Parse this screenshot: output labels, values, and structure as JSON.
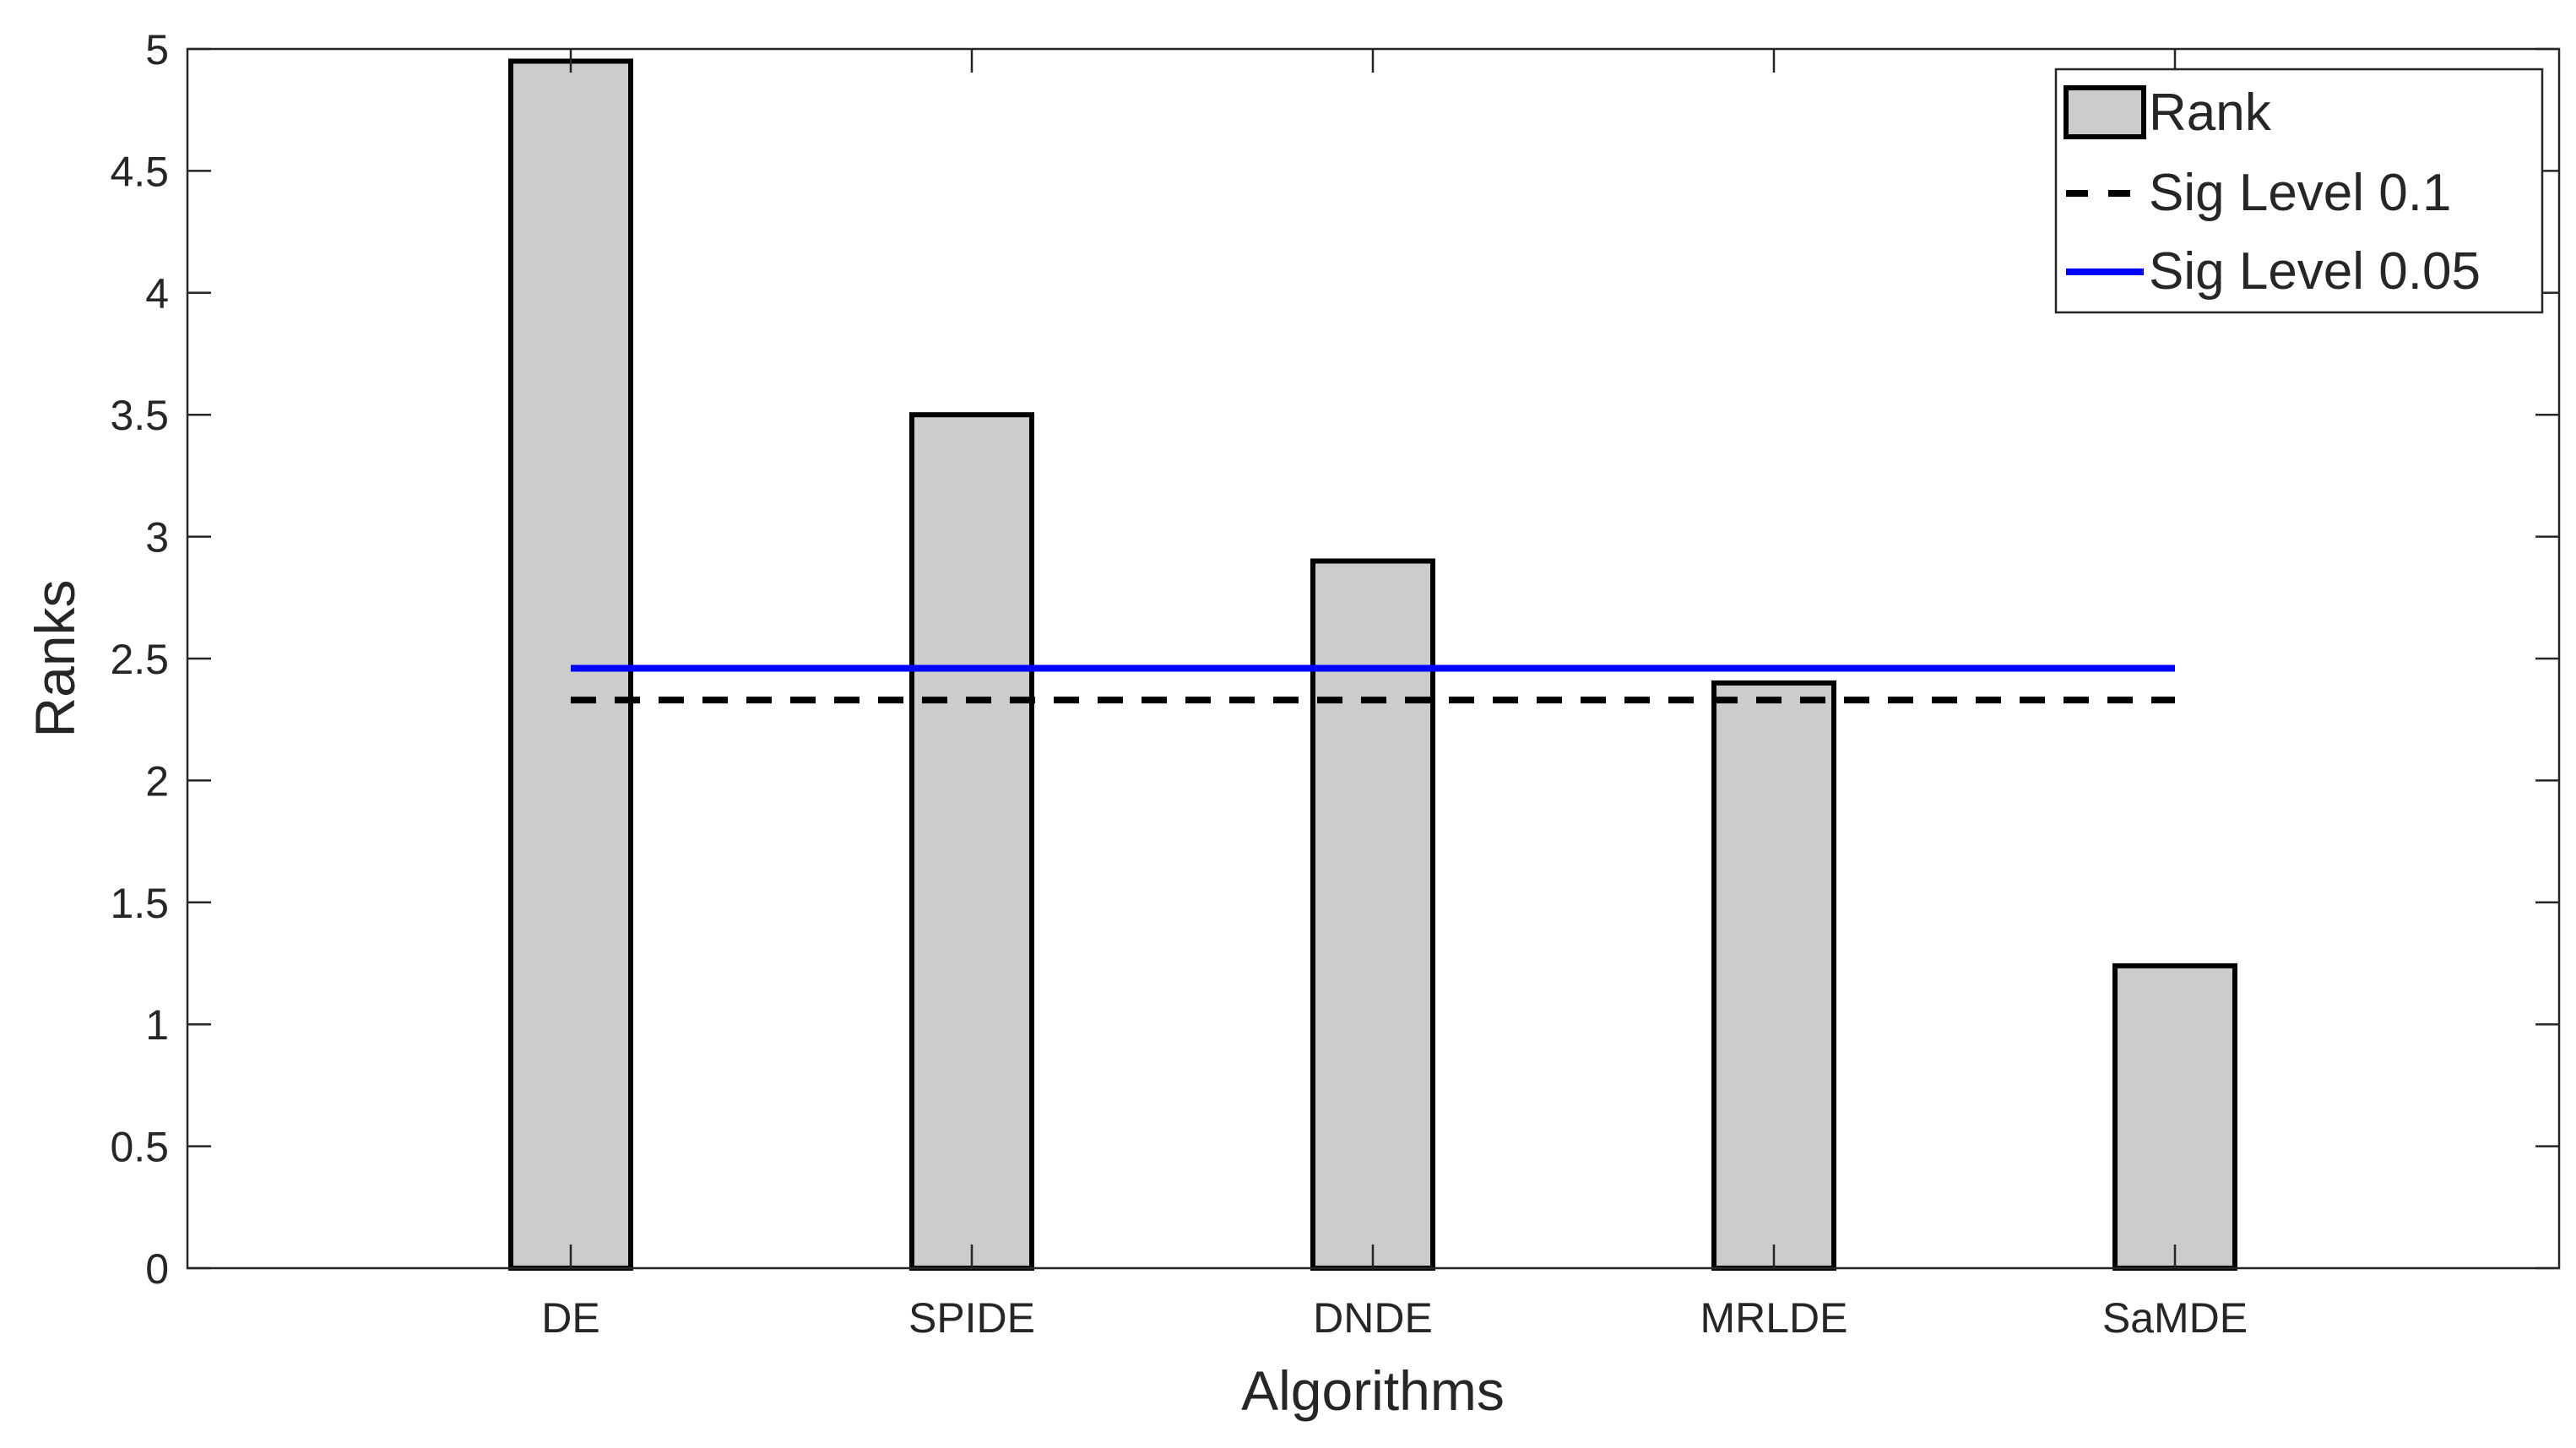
{
  "chart_data": {
    "type": "bar",
    "xlabel": "Algorithms",
    "ylabel": "Ranks",
    "categories": [
      "DE",
      "SPIDE",
      "DNDE",
      "MRLDE",
      "SaMDE"
    ],
    "series": [
      {
        "name": "Rank",
        "values": [
          4.95,
          3.5,
          2.9,
          2.4,
          1.24
        ],
        "color": "#cccccc",
        "edge_color": "#000000"
      }
    ],
    "reference_lines": [
      {
        "name": "Sig Level 0.1",
        "value": 2.33,
        "style": "dashed",
        "color": "#000000"
      },
      {
        "name": "Sig Level 0.05",
        "value": 2.46,
        "style": "solid",
        "color": "#0000ff"
      }
    ],
    "ylim": [
      0,
      5
    ],
    "yticks": [
      "0",
      "0.5",
      "1",
      "1.5",
      "2",
      "2.5",
      "3",
      "3.5",
      "4",
      "4.5",
      "5"
    ],
    "legend_position": "top-right",
    "grid": false
  }
}
